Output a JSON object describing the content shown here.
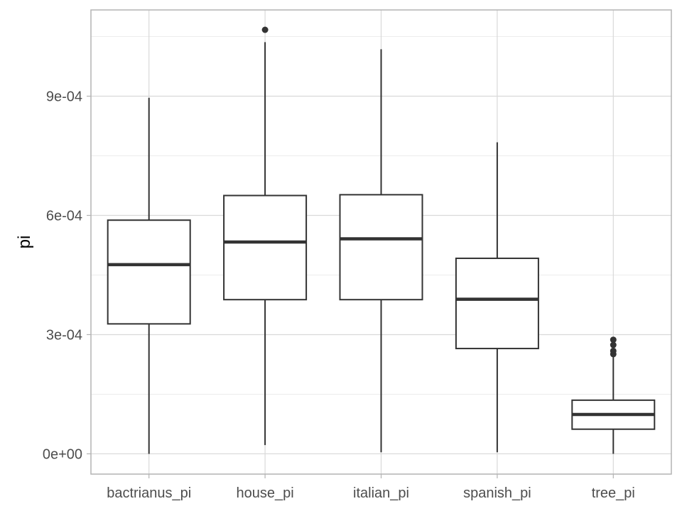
{
  "chart_data": {
    "type": "boxplot",
    "title": "",
    "xlabel": "",
    "ylabel": "pi",
    "ylim": [
      -5.1e-05,
      0.001117
    ],
    "yticks": [
      0,
      0.0003,
      0.0006,
      0.0009
    ],
    "ytick_labels": [
      "0e+00",
      "3e-04",
      "6e-04",
      "9e-04"
    ],
    "grid": true,
    "legend": "none",
    "categories": [
      "bactrianus_pi",
      "house_pi",
      "italian_pi",
      "spanish_pi",
      "tree_pi"
    ],
    "boxes": [
      {
        "category": "bactrianus_pi",
        "whisker_low": 0.0,
        "q1": 0.000327,
        "median": 0.000476,
        "q3": 0.000588,
        "whisker_high": 0.000896,
        "outliers": []
      },
      {
        "category": "house_pi",
        "whisker_low": 2.2e-05,
        "q1": 0.000388,
        "median": 0.000533,
        "q3": 0.00065,
        "whisker_high": 0.001036,
        "outliers": [
          0.001067
        ]
      },
      {
        "category": "italian_pi",
        "whisker_low": 4e-06,
        "q1": 0.000388,
        "median": 0.000541,
        "q3": 0.000652,
        "whisker_high": 0.001018,
        "outliers": []
      },
      {
        "category": "spanish_pi",
        "whisker_low": 4e-06,
        "q1": 0.000265,
        "median": 0.000389,
        "q3": 0.000492,
        "whisker_high": 0.000784,
        "outliers": []
      },
      {
        "category": "tree_pi",
        "whisker_low": 0.0,
        "q1": 6.2e-05,
        "median": 9.9e-05,
        "q3": 0.000135,
        "whisker_high": 0.000244,
        "outliers": [
          0.000251,
          0.000259,
          0.000274,
          0.000287
        ]
      }
    ],
    "colors": {
      "box_fill": "#ffffff",
      "box_line": "#333333",
      "grid_major": "#d9d9d9",
      "grid_minor": "#ececec",
      "panel_border": "#b3b3b3",
      "tick_text": "#4d4d4d",
      "axis_title": "#000000"
    }
  }
}
